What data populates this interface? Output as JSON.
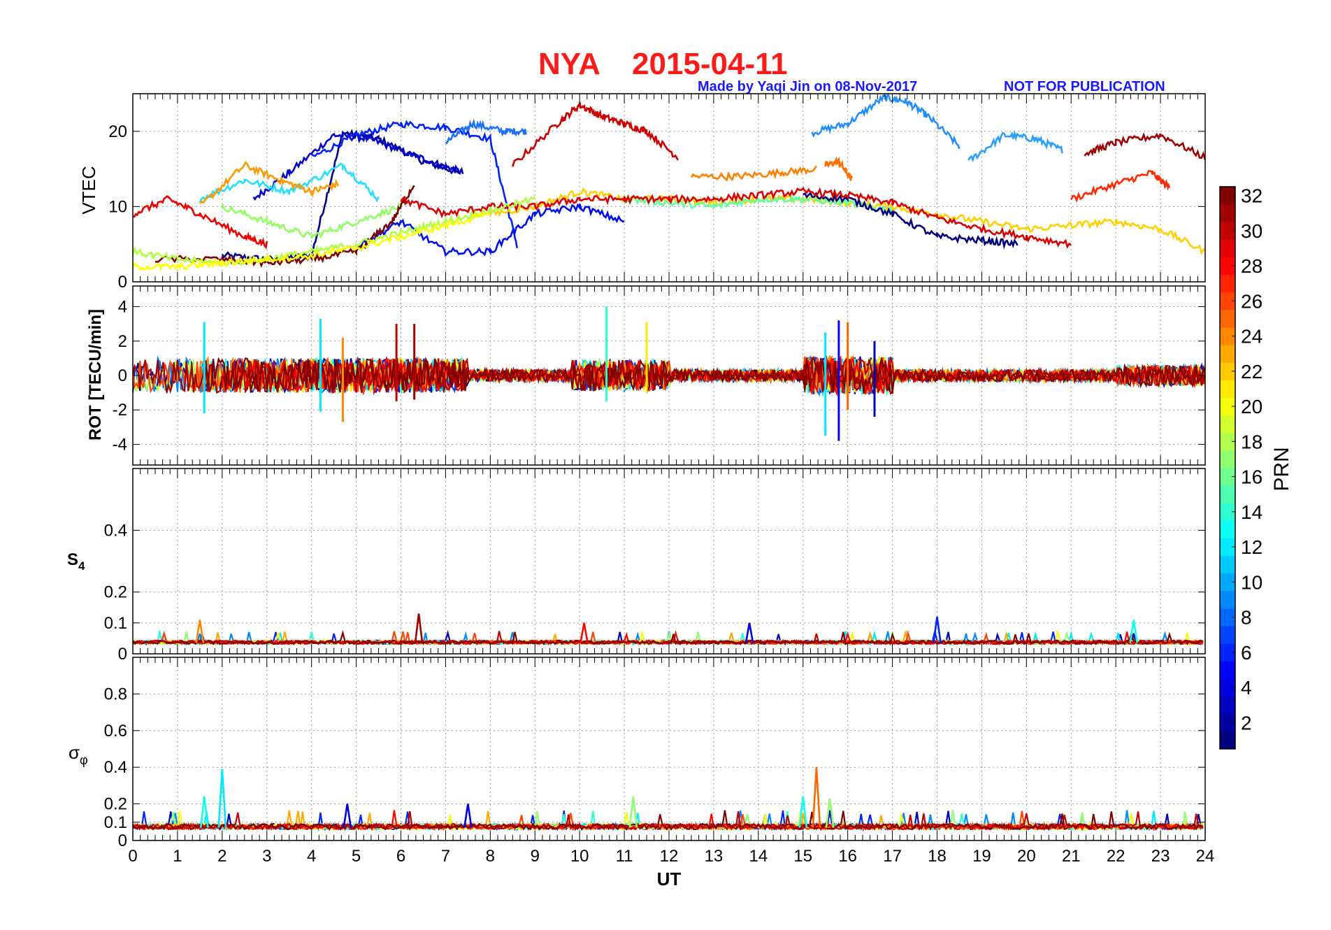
{
  "figure": {
    "title_station": "NYA",
    "title_date": "2015-04-11",
    "credit": "Made by Yaqi Jin on 08-Nov-2017",
    "notice": "NOT FOR PUBLICATION"
  },
  "colorbar": {
    "label": "PRN",
    "colormap": "jet",
    "range": [
      1,
      32
    ],
    "ticks": [
      "2",
      "4",
      "6",
      "8",
      "10",
      "12",
      "14",
      "16",
      "18",
      "20",
      "22",
      "24",
      "26",
      "28",
      "30",
      "32"
    ]
  },
  "chart_data": [
    {
      "type": "line",
      "panel": "VTEC",
      "ylabel": "VTEC",
      "xlim": [
        0,
        24
      ],
      "ylim": [
        0,
        25
      ],
      "yticks": [
        "0",
        "10",
        "20"
      ],
      "grid": true,
      "series": [
        {
          "prn": 2,
          "color": "#00008f",
          "x": [
            2.0,
            3.0,
            4.0,
            4.7,
            5.5,
            6.5,
            7.3,
            8.0
          ],
          "y": [
            3.5,
            3.0,
            3.5,
            19.8,
            19.0,
            16.0,
            14.5,
            null
          ]
        },
        {
          "prn": 3,
          "color": "#0000cf",
          "x": [
            2.7,
            3.5,
            4.5,
            5.3,
            6.2,
            6.9,
            7.4
          ],
          "y": [
            11.0,
            14.5,
            19.5,
            19.0,
            17.0,
            15.5,
            14.5
          ]
        },
        {
          "prn": 5,
          "color": "#0022ff",
          "x": [
            4.0,
            5.0,
            6.0,
            7.0,
            8.0,
            8.6
          ],
          "y": [
            16.5,
            19.5,
            21.0,
            20.5,
            19.0,
            4.8
          ]
        },
        {
          "prn": 8,
          "color": "#1a70ff",
          "x": [
            7.0,
            7.6,
            8.3,
            8.8
          ],
          "y": [
            18.5,
            21.0,
            20.0,
            20.0
          ]
        },
        {
          "prn": 9,
          "color": "#2090ff",
          "x": [
            15.2,
            16.0,
            16.8,
            17.3,
            17.8,
            18.5
          ],
          "y": [
            19.8,
            21.0,
            24.5,
            24.0,
            22.0,
            18.0
          ]
        },
        {
          "prn": 10,
          "color": "#29a0ff",
          "x": [
            18.7,
            19.5,
            20.2,
            20.8
          ],
          "y": [
            16.0,
            19.5,
            19.0,
            17.5
          ]
        },
        {
          "prn": 12,
          "color": "#20e0ff",
          "x": [
            1.5,
            2.5,
            3.5,
            4.7,
            5.5
          ],
          "y": [
            11.0,
            13.5,
            12.0,
            15.5,
            11.0
          ]
        },
        {
          "prn": 17,
          "color": "#90ff60",
          "x": [
            2.0,
            3.0,
            4.0,
            5.0,
            6.0
          ],
          "y": [
            10.0,
            8.0,
            6.0,
            8.0,
            10.0
          ]
        },
        {
          "prn": 23,
          "color": "#ff9900",
          "x": [
            1.5,
            2.5,
            3.3,
            4.0,
            4.6
          ],
          "y": [
            10.0,
            15.5,
            13.5,
            12.0,
            13.0
          ]
        },
        {
          "prn": 24,
          "color": "#ff8000",
          "x": [
            12.5,
            13.5,
            14.5,
            15.3
          ],
          "y": [
            14.0,
            14.0,
            14.5,
            15.0
          ]
        },
        {
          "prn": 25,
          "color": "#ff7000",
          "x": [
            15.5,
            15.8,
            16.1
          ],
          "y": [
            15.5,
            16.0,
            13.5
          ]
        },
        {
          "prn": 30,
          "color": "#cc0000",
          "x": [
            8.5,
            9.5,
            10.0,
            10.5,
            11.0,
            11.5,
            12.2
          ],
          "y": [
            15.5,
            21.0,
            23.5,
            22.0,
            21.0,
            20.0,
            16.5
          ]
        },
        {
          "prn": 31,
          "color": "#a00000",
          "x": [
            21.3,
            22.0,
            23.0,
            24.0
          ],
          "y": [
            17.0,
            18.5,
            19.5,
            16.5
          ]
        },
        {
          "prn": 28,
          "color": "#ff2a00",
          "x": [
            21.0,
            22.0,
            22.8,
            23.2
          ],
          "y": [
            11.0,
            13.0,
            14.5,
            12.5
          ]
        },
        {
          "prn": 27,
          "color": "#ee0000",
          "x": [
            0.0,
            0.8,
            1.5,
            2.5,
            3.0
          ],
          "y": [
            9.0,
            11.0,
            9.0,
            6.0,
            5.0
          ]
        },
        {
          "prn": 21,
          "color": "#ffd000",
          "x": [
            8.0,
            9.0,
            10.0,
            11.0,
            12.0,
            13.0,
            14.0,
            15.0,
            16.0,
            17.0,
            18.0,
            19.0,
            20.0,
            21.0,
            22.0,
            23.0,
            24.0
          ],
          "y": [
            9.0,
            10.0,
            12.0,
            11.0,
            11.0,
            10.5,
            11.0,
            11.0,
            10.5,
            10.0,
            9.0,
            8.0,
            7.0,
            7.5,
            8.0,
            7.0,
            4.0
          ]
        },
        {
          "prn": 15,
          "color": "#60ffa0",
          "x": [
            11.0,
            12.0,
            13.0,
            14.0,
            15.0,
            16.0,
            17.0
          ],
          "y": [
            11.0,
            10.5,
            10.0,
            11.0,
            11.0,
            10.5,
            9.5
          ]
        },
        {
          "prn": 4,
          "color": "#0010f0",
          "x": [
            5.0,
            6.0,
            7.0,
            8.0,
            9.0,
            10.0,
            11.0
          ],
          "y": [
            4.5,
            8.0,
            4.0,
            4.0,
            9.0,
            10.0,
            8.0
          ]
        },
        {
          "prn": 1,
          "color": "#000080",
          "x": [
            15.0,
            16.0,
            17.0,
            18.0,
            19.0,
            19.8
          ],
          "y": [
            11.5,
            11.0,
            9.0,
            6.0,
            5.5,
            5.0
          ]
        },
        {
          "prn": 32,
          "color": "#800000",
          "x": [
            0.5,
            2.0,
            3.0,
            4.0,
            5.0,
            5.8,
            6.3
          ],
          "y": [
            3.0,
            3.0,
            2.5,
            3.0,
            4.0,
            8.0,
            13.0
          ]
        },
        {
          "prn": 29,
          "color": "#dd0000",
          "x": [
            6.0,
            7.0,
            8.0,
            9.0,
            10.0,
            11.0,
            12.0,
            13.0,
            14.0,
            15.0,
            16.0,
            17.0,
            18.0,
            19.0,
            20.0,
            21.0
          ],
          "y": [
            11.0,
            9.0,
            10.0,
            10.0,
            11.0,
            11.0,
            11.0,
            11.0,
            11.5,
            12.0,
            11.5,
            10.5,
            8.5,
            7.0,
            6.0,
            5.0
          ]
        },
        {
          "prn": 18,
          "color": "#b0ff40",
          "x": [
            0.0,
            1.0,
            2.0,
            3.0,
            4.0,
            5.0,
            6.0,
            7.0,
            8.0,
            9.0
          ],
          "y": [
            4.0,
            3.0,
            2.5,
            3.0,
            4.0,
            5.0,
            6.5,
            8.0,
            9.5,
            11.0
          ]
        },
        {
          "prn": 20,
          "color": "#ffff00",
          "x": [
            0.0,
            1.0,
            2.0,
            3.0,
            4.0,
            5.0,
            6.0,
            7.0,
            8.0
          ],
          "y": [
            2.0,
            2.0,
            2.5,
            3.0,
            3.5,
            4.5,
            6.0,
            7.5,
            9.0
          ]
        }
      ]
    },
    {
      "type": "line",
      "panel": "ROT",
      "ylabel": "ROT [TECU/min]",
      "xlim": [
        0,
        24
      ],
      "ylim": [
        -5.2,
        5.2
      ],
      "yticks": [
        "-4",
        "-2",
        "0",
        "2",
        "4"
      ],
      "grid": true,
      "bursts": [
        {
          "x": 1.6,
          "max": 3.1,
          "min": -2.2,
          "prn": 12
        },
        {
          "x": 4.2,
          "max": 3.3,
          "min": -2.1,
          "prn": 12
        },
        {
          "x": 4.7,
          "max": 2.2,
          "min": -2.7,
          "prn": 24
        },
        {
          "x": 5.9,
          "max": 3.0,
          "min": -1.5,
          "prn": 30
        },
        {
          "x": 6.3,
          "max": 3.0,
          "min": -1.4,
          "prn": 31
        },
        {
          "x": 10.6,
          "max": 4.0,
          "min": -1.5,
          "prn": 14
        },
        {
          "x": 11.5,
          "max": 3.1,
          "min": -1.0,
          "prn": 21
        },
        {
          "x": 15.5,
          "max": 2.5,
          "min": -3.5,
          "prn": 12
        },
        {
          "x": 15.8,
          "max": 3.2,
          "min": -3.8,
          "prn": 5
        },
        {
          "x": 16.0,
          "max": 3.1,
          "min": -2.0,
          "prn": 25
        },
        {
          "x": 16.6,
          "max": 2.0,
          "min": -2.4,
          "prn": 3
        }
      ]
    },
    {
      "type": "line",
      "panel": "S4",
      "ylabel": "S4",
      "xlim": [
        0,
        24
      ],
      "ylim": [
        0,
        0.6
      ],
      "yticks": [
        "0",
        "0.1",
        "0.2",
        "0.4"
      ],
      "grid": true,
      "peaks": [
        {
          "x": 1.5,
          "y": 0.11,
          "prn": 24
        },
        {
          "x": 6.4,
          "y": 0.13,
          "prn": 31
        },
        {
          "x": 10.1,
          "y": 0.1,
          "prn": 28
        },
        {
          "x": 13.8,
          "y": 0.1,
          "prn": 4
        },
        {
          "x": 18.0,
          "y": 0.12,
          "prn": 6
        },
        {
          "x": 22.4,
          "y": 0.11,
          "prn": 13
        }
      ]
    },
    {
      "type": "line",
      "panel": "sigma_phi",
      "ylabel": "σφ",
      "xlabel": "UT",
      "xlim": [
        0,
        24
      ],
      "ylim": [
        0,
        1.0
      ],
      "yticks": [
        "0",
        "0.1",
        "0.2",
        "0.4",
        "0.6",
        "0.8"
      ],
      "xticks": [
        "0",
        "1",
        "2",
        "3",
        "4",
        "5",
        "6",
        "7",
        "8",
        "9",
        "10",
        "11",
        "12",
        "13",
        "14",
        "15",
        "16",
        "17",
        "18",
        "19",
        "20",
        "21",
        "22",
        "23",
        "24"
      ],
      "grid": true,
      "peaks": [
        {
          "x": 2.0,
          "y": 0.39,
          "prn": 12
        },
        {
          "x": 1.6,
          "y": 0.24,
          "prn": 13
        },
        {
          "x": 4.8,
          "y": 0.2,
          "prn": 4
        },
        {
          "x": 7.5,
          "y": 0.2,
          "prn": 4
        },
        {
          "x": 11.2,
          "y": 0.24,
          "prn": 17
        },
        {
          "x": 15.3,
          "y": 0.4,
          "prn": 25
        },
        {
          "x": 15.0,
          "y": 0.24,
          "prn": 13
        },
        {
          "x": 15.6,
          "y": 0.23,
          "prn": 17
        }
      ]
    }
  ]
}
